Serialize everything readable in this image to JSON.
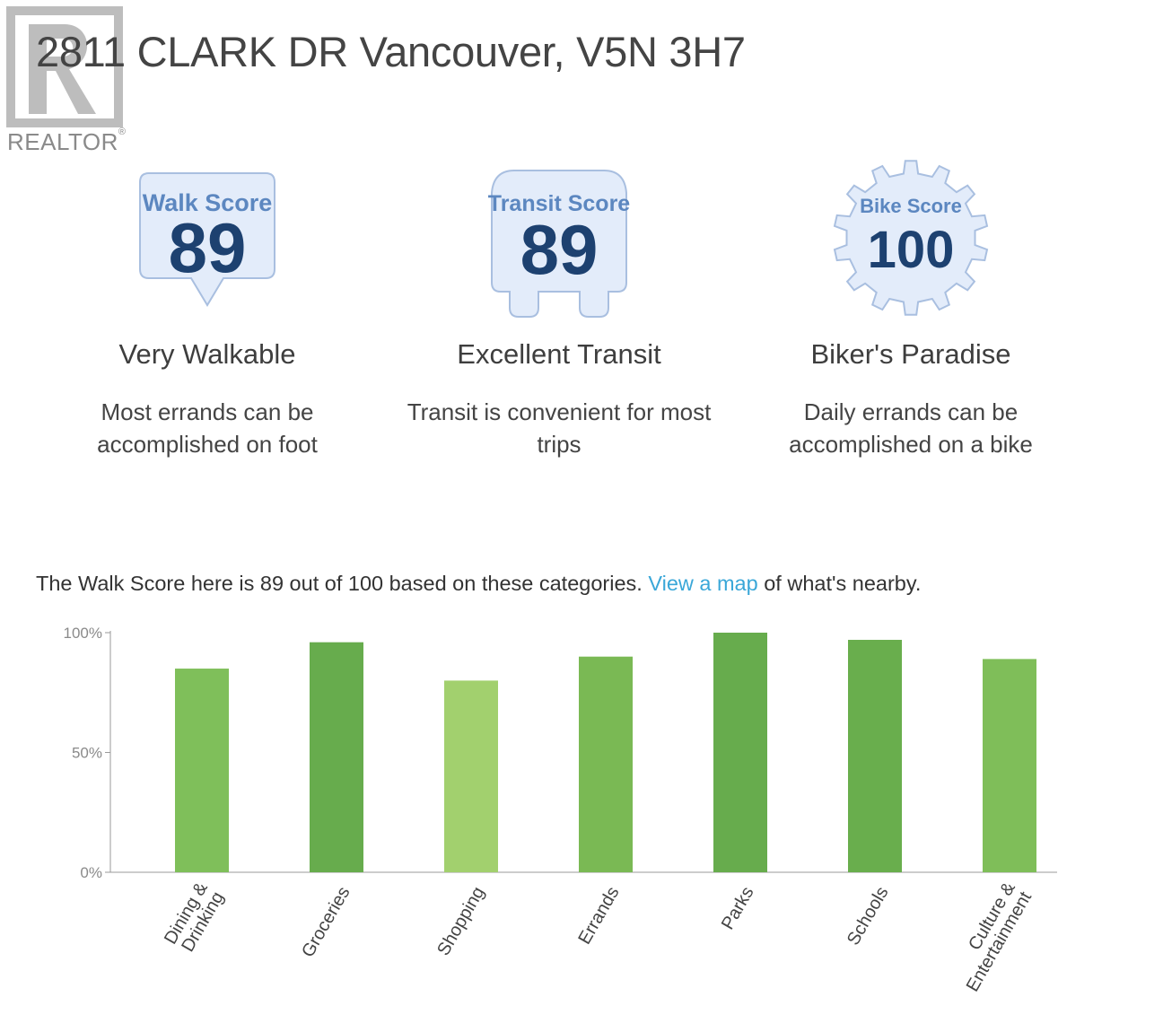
{
  "logo": {
    "word": "REALTOR",
    "reg": "®"
  },
  "title": "2811 CLARK DR Vancouver, V5N 3H7",
  "scores": [
    {
      "badge_label": "Walk Score",
      "value": "89",
      "title": "Very Walkable",
      "desc_line1": "Most errands can be",
      "desc_line2": "accomplished on foot"
    },
    {
      "badge_label": "Transit Score",
      "value": "89",
      "title": "Excellent Transit",
      "desc_line1": "Transit is convenient for most",
      "desc_line2": "trips"
    },
    {
      "badge_label": "Bike Score",
      "value": "100",
      "title": "Biker's Paradise",
      "desc_line1": "Daily errands can be",
      "desc_line2": "accomplished on a bike"
    }
  ],
  "summary": {
    "before": "The Walk Score here is 89 out of 100 based on these categories. ",
    "link": "View a map",
    "after": " of what's nearby."
  },
  "colors": {
    "badge_fill": "#e3ecfa",
    "badge_stroke": "#a9bfe0",
    "badge_label": "#5c87c0",
    "badge_value": "#1d4170"
  },
  "chart_data": {
    "type": "bar",
    "categories": [
      "Dining & Drinking",
      "Groceries",
      "Shopping",
      "Errands",
      "Parks",
      "Schools",
      "Culture & Entertainment"
    ],
    "category_lines": [
      [
        "Dining &",
        "Drinking"
      ],
      [
        "Groceries"
      ],
      [
        "Shopping"
      ],
      [
        "Errands"
      ],
      [
        "Parks"
      ],
      [
        "Schools"
      ],
      [
        "Culture &",
        "Entertainment"
      ]
    ],
    "values": [
      85,
      96,
      80,
      90,
      100,
      97,
      89
    ],
    "colors": [
      "#7fbf5a",
      "#67ac4d",
      "#a2d06e",
      "#7ab954",
      "#67ac4d",
      "#69ae4d",
      "#7fbe59"
    ],
    "ylim": [
      0,
      100
    ],
    "yticks": [
      "0%",
      "50%",
      "100%"
    ],
    "title": "",
    "xlabel": "",
    "ylabel": ""
  }
}
